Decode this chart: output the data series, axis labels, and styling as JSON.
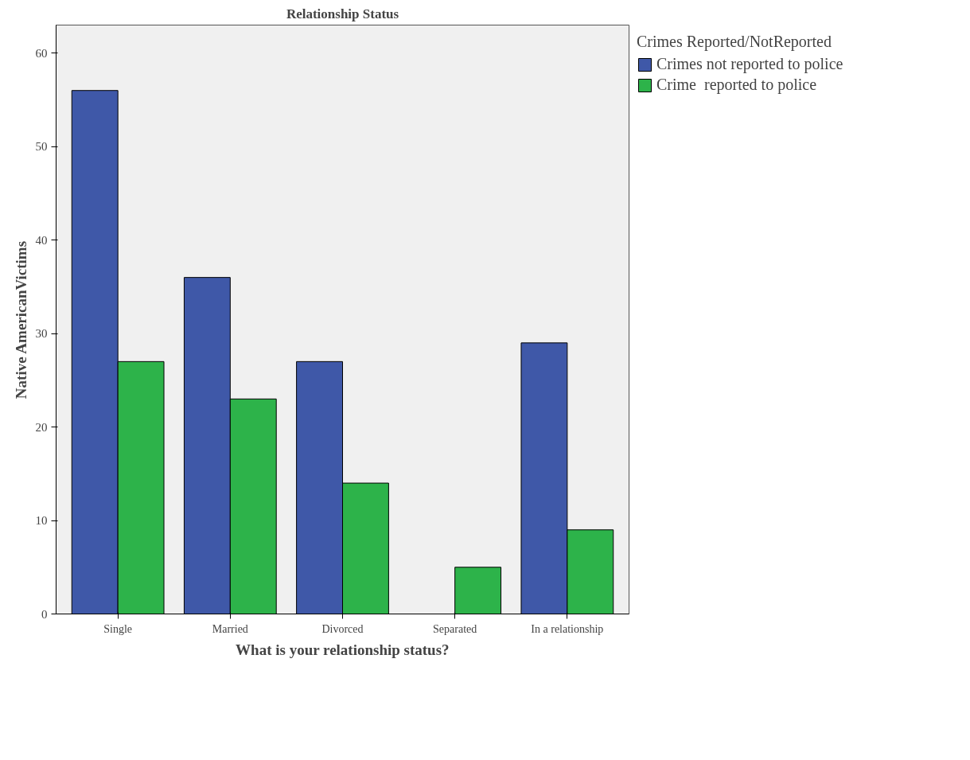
{
  "chart_data": {
    "type": "bar",
    "title": "Relationship Status",
    "xlabel": "What is your relationship status?",
    "ylabel": "Native AmericanVictims",
    "legend_title": "Crimes Reported/NotReported",
    "categories": [
      "Single",
      "Married",
      "Divorced",
      "Separated",
      "In a relationship"
    ],
    "series": [
      {
        "name": "Crimes not reported to police",
        "color": "#3f58a8",
        "values": [
          56,
          36,
          27,
          null,
          29
        ]
      },
      {
        "name": "Crime  reported to police",
        "color": "#2db34a",
        "values": [
          27,
          23,
          14,
          5,
          9
        ]
      }
    ],
    "ylim": [
      0,
      63
    ],
    "yticks": [
      0,
      10,
      20,
      30,
      40,
      50,
      60
    ],
    "grid": false,
    "legend": "right"
  }
}
